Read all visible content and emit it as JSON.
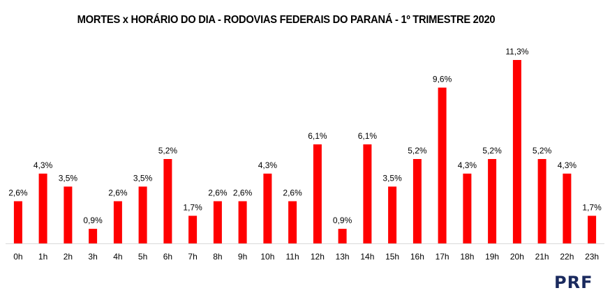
{
  "chart_data": {
    "type": "bar",
    "title": "MORTES x HORÁRIO DO DIA - RODOVIAS FEDERAIS DO PARANÁ - 1º TRIMESTRE 2020",
    "xlabel": "",
    "ylabel": "",
    "categories": [
      "0h",
      "1h",
      "2h",
      "3h",
      "4h",
      "5h",
      "6h",
      "7h",
      "8h",
      "9h",
      "10h",
      "11h",
      "12h",
      "13h",
      "14h",
      "15h",
      "16h",
      "17h",
      "18h",
      "19h",
      "20h",
      "21h",
      "22h",
      "23h"
    ],
    "values": [
      2.6,
      4.3,
      3.5,
      0.9,
      2.6,
      3.5,
      5.2,
      1.7,
      2.6,
      2.6,
      4.3,
      2.6,
      6.1,
      0.9,
      6.1,
      3.5,
      5.2,
      9.6,
      4.3,
      5.2,
      11.3,
      5.2,
      4.3,
      1.7
    ],
    "value_labels": [
      "2,6%",
      "4,3%",
      "3,5%",
      "0,9%",
      "2,6%",
      "3,5%",
      "5,2%",
      "1,7%",
      "2,6%",
      "2,6%",
      "4,3%",
      "2,6%",
      "6,1%",
      "0,9%",
      "6,1%",
      "3,5%",
      "5,2%",
      "9,6%",
      "4,3%",
      "5,2%",
      "11,3%",
      "5,2%",
      "4,3%",
      "1,7%"
    ],
    "unit": "%",
    "ylim": [
      0,
      11.3
    ],
    "grid": false,
    "legend": "none",
    "bar_color": "#ff0000",
    "axis_color": "#d9d9d9"
  },
  "logo": {
    "text": "PRF",
    "color": "#1a2a5e"
  }
}
